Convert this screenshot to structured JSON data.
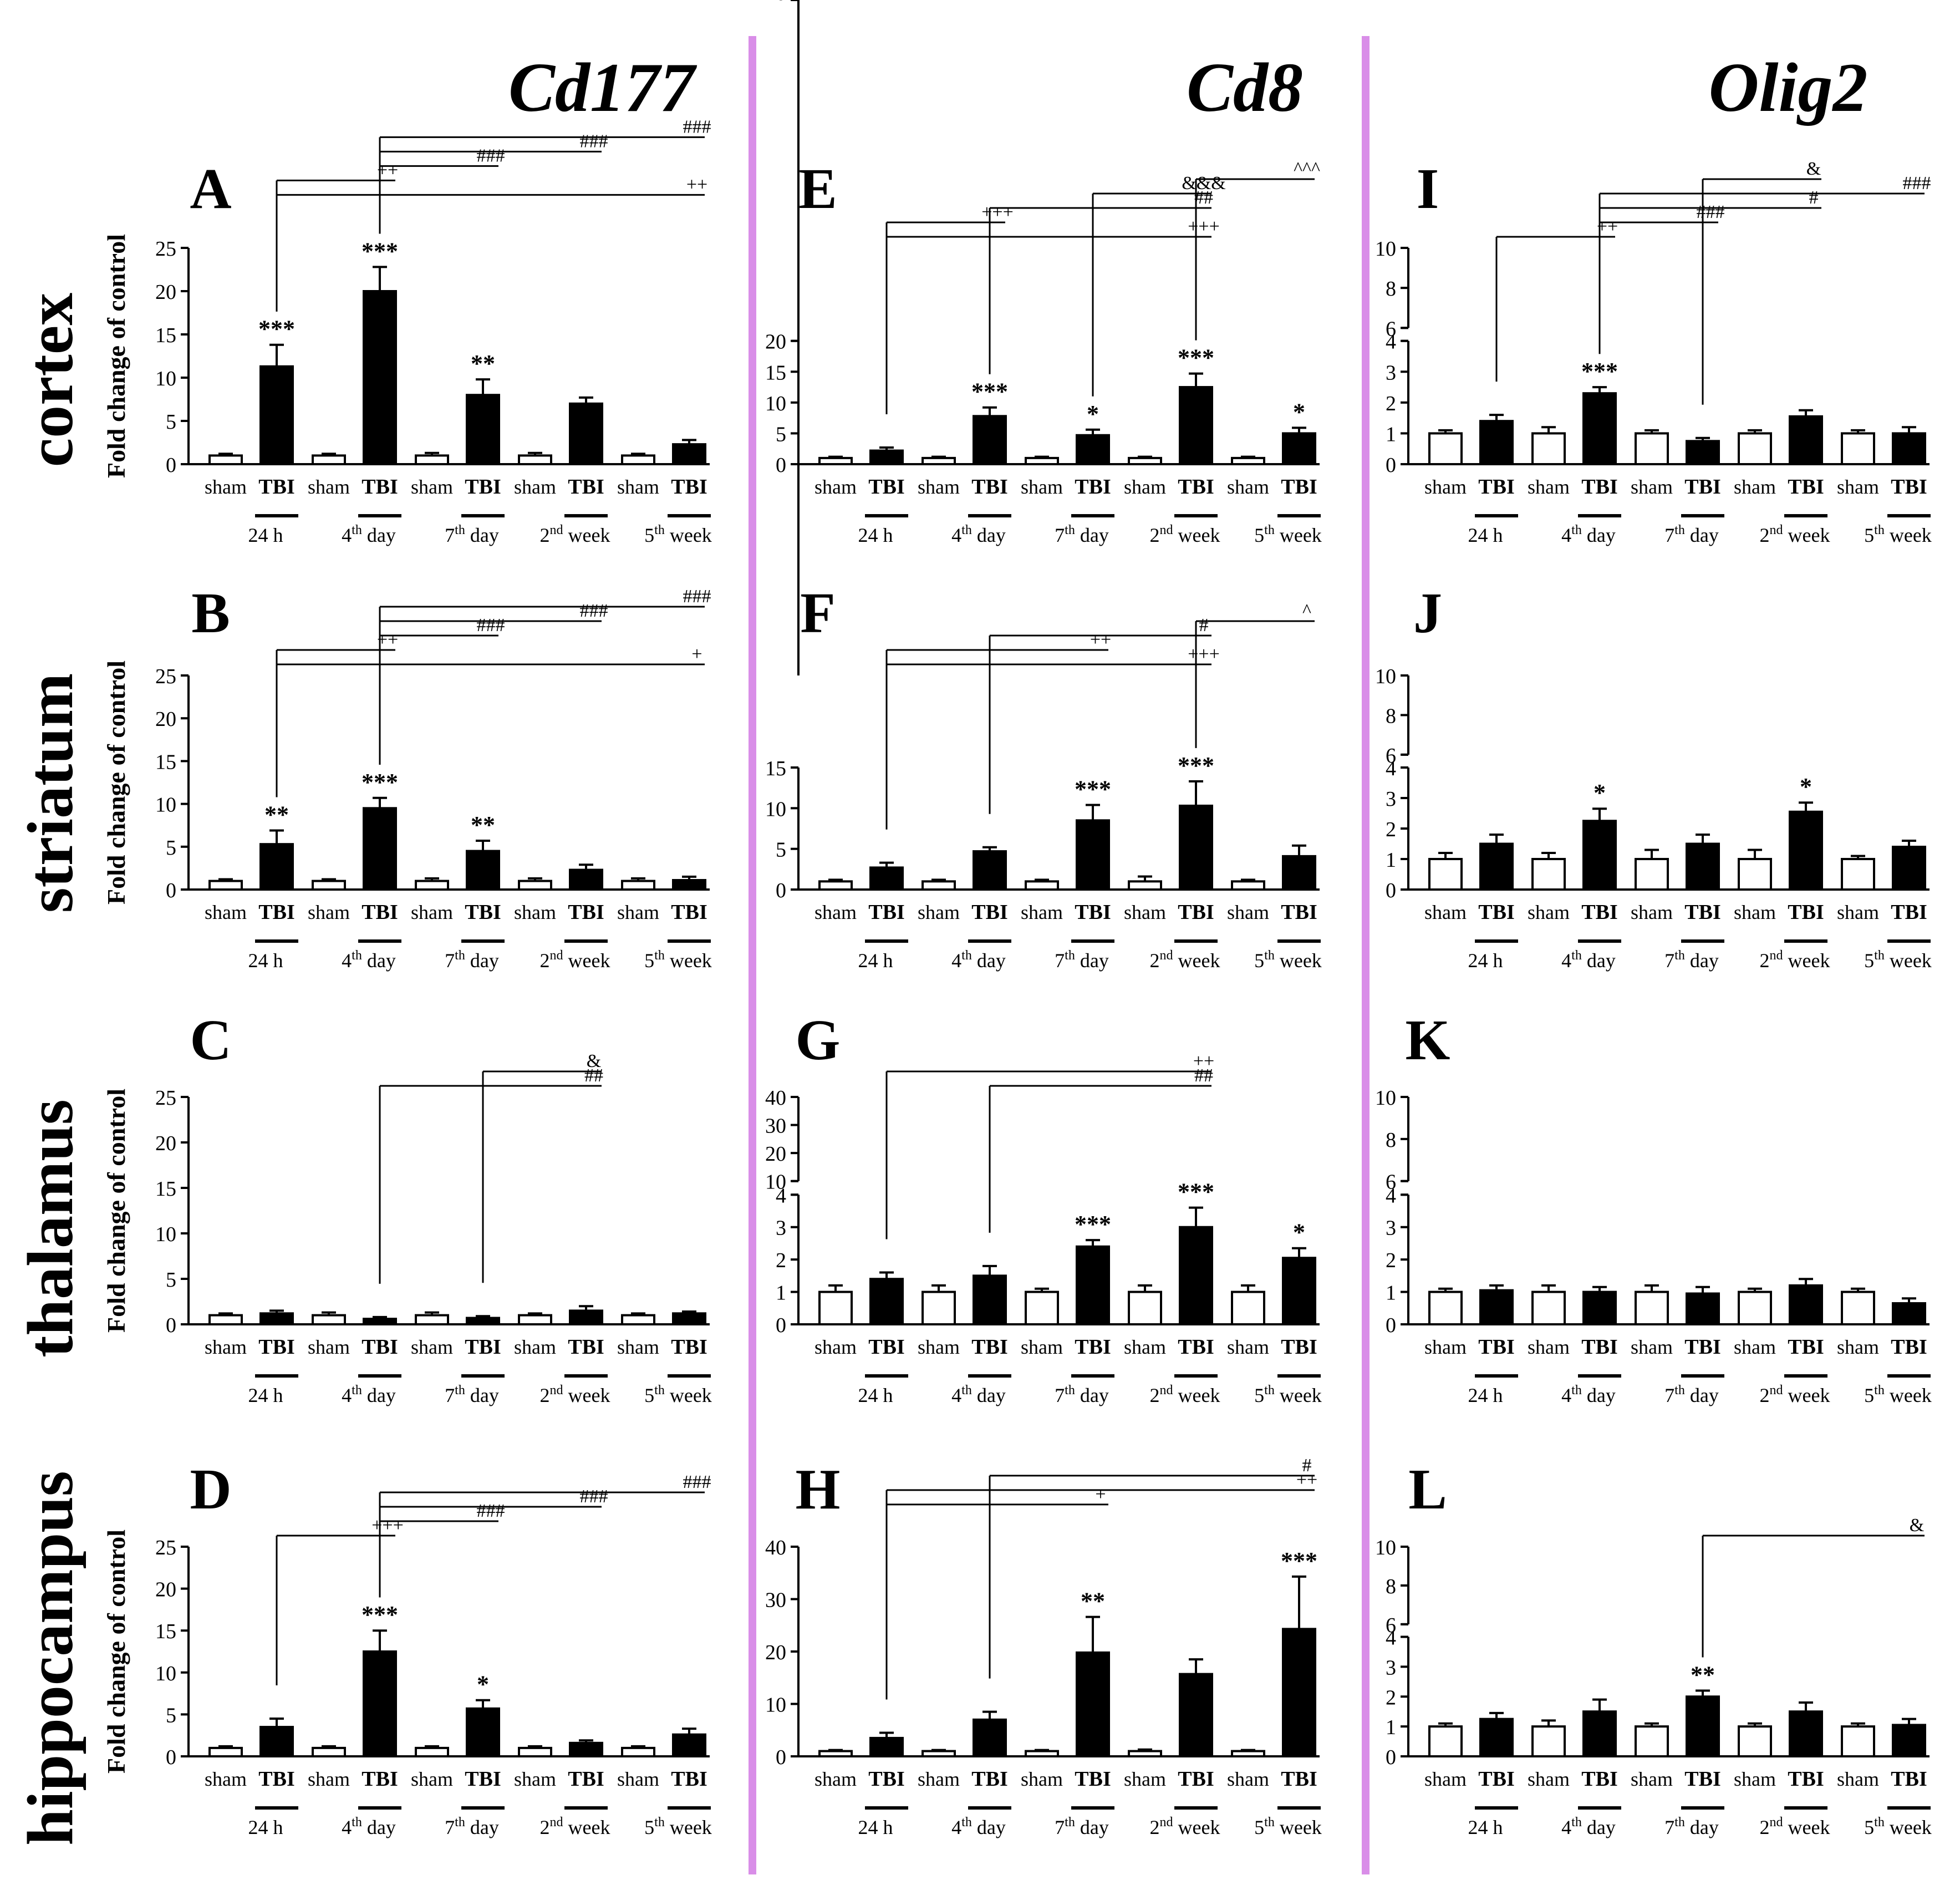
{
  "column_titles": [
    "Cd177",
    "Cd8",
    "Olig2"
  ],
  "row_titles": [
    "cortex",
    "striatum",
    "thalamus",
    "hippocampus"
  ],
  "ylabel": "Fold change of control",
  "bar_labels": [
    "sham",
    "TBI"
  ],
  "group_labels": [
    {
      "pre": "24 h",
      "sup": "",
      "post": ""
    },
    {
      "pre": "4",
      "sup": "th",
      "post": " day"
    },
    {
      "pre": "7",
      "sup": "th",
      "post": " day"
    },
    {
      "pre": "2",
      "sup": "nd",
      "post": " week"
    },
    {
      "pre": "5",
      "sup": "th",
      "post": " week"
    }
  ],
  "colors": {
    "sham": "#ffffff",
    "TBI": "#000000",
    "divider": "#d98ee8",
    "text": "#000000"
  },
  "chart_data": [
    {
      "id": "A",
      "type": "bar",
      "column": 0,
      "row": 0,
      "ylim": [
        0,
        25
      ],
      "yticks": [
        0,
        5,
        10,
        15,
        20,
        25
      ],
      "series": [
        {
          "name": "sham",
          "values": [
            1,
            1,
            1,
            1,
            1
          ],
          "err": [
            0.2,
            0.2,
            0.3,
            0.3,
            0.2
          ]
        },
        {
          "name": "TBI",
          "values": [
            11.3,
            20,
            8,
            7,
            2.3
          ],
          "err": [
            2.5,
            2.8,
            1.8,
            0.7,
            0.5
          ]
        }
      ],
      "stars": [
        "***",
        "***",
        "**",
        "",
        ""
      ],
      "comparisons": [
        {
          "from": 0,
          "to": 4,
          "sym": "++"
        },
        {
          "from": 0,
          "to": 1,
          "sym": "++"
        },
        {
          "from": 1,
          "to": 2,
          "sym": "###"
        },
        {
          "from": 1,
          "to": 3,
          "sym": "###"
        },
        {
          "from": 1,
          "to": 4,
          "sym": "###"
        }
      ]
    },
    {
      "id": "B",
      "type": "bar",
      "column": 0,
      "row": 1,
      "ylim": [
        0,
        25
      ],
      "yticks": [
        0,
        5,
        10,
        15,
        20,
        25
      ],
      "series": [
        {
          "name": "sham",
          "values": [
            1,
            1,
            1,
            1,
            1
          ],
          "err": [
            0.2,
            0.2,
            0.3,
            0.3,
            0.3
          ]
        },
        {
          "name": "TBI",
          "values": [
            5.3,
            9.5,
            4.5,
            2.3,
            1.1
          ],
          "err": [
            1.6,
            1.2,
            1.2,
            0.6,
            0.4
          ]
        }
      ],
      "stars": [
        "**",
        "***",
        "**",
        "",
        ""
      ],
      "comparisons": [
        {
          "from": 0,
          "to": 4,
          "sym": "+"
        },
        {
          "from": 0,
          "to": 1,
          "sym": "++"
        },
        {
          "from": 1,
          "to": 2,
          "sym": "###"
        },
        {
          "from": 1,
          "to": 3,
          "sym": "###"
        },
        {
          "from": 1,
          "to": 4,
          "sym": "###"
        }
      ]
    },
    {
      "id": "C",
      "type": "bar",
      "column": 0,
      "row": 2,
      "ylim": [
        0,
        25
      ],
      "yticks": [
        0,
        5,
        10,
        15,
        20,
        25
      ],
      "series": [
        {
          "name": "sham",
          "values": [
            1,
            1,
            1,
            1,
            1
          ],
          "err": [
            0.2,
            0.3,
            0.3,
            0.2,
            0.2
          ]
        },
        {
          "name": "TBI",
          "values": [
            1.2,
            0.6,
            0.7,
            1.5,
            1.2
          ],
          "err": [
            0.3,
            0.2,
            0.2,
            0.5,
            0.2
          ]
        }
      ],
      "stars": [
        "",
        "",
        "",
        "",
        ""
      ],
      "comparisons": [
        {
          "from": 1,
          "to": 3,
          "sym": "##"
        },
        {
          "from": 2,
          "to": 3,
          "sym": "&"
        }
      ]
    },
    {
      "id": "D",
      "type": "bar",
      "column": 0,
      "row": 3,
      "ylim": [
        0,
        25
      ],
      "yticks": [
        0,
        5,
        10,
        15,
        20,
        25
      ],
      "series": [
        {
          "name": "sham",
          "values": [
            1,
            1,
            1,
            1,
            1
          ],
          "err": [
            0.2,
            0.2,
            0.2,
            0.2,
            0.2
          ]
        },
        {
          "name": "TBI",
          "values": [
            3.5,
            12.5,
            5.7,
            1.6,
            2.6
          ],
          "err": [
            1.0,
            2.5,
            1.0,
            0.3,
            0.7
          ]
        }
      ],
      "stars": [
        "",
        "***",
        "*",
        "",
        ""
      ],
      "comparisons": [
        {
          "from": 0,
          "to": 1,
          "sym": "+++"
        },
        {
          "from": 1,
          "to": 2,
          "sym": "###"
        },
        {
          "from": 1,
          "to": 3,
          "sym": "###"
        },
        {
          "from": 1,
          "to": 4,
          "sym": "###"
        }
      ]
    },
    {
      "id": "E",
      "type": "bar",
      "column": 1,
      "row": 0,
      "ylim": [
        0,
        40
      ],
      "yticks": [
        0,
        5,
        10,
        15,
        20,
        40
      ],
      "axis_break": [
        20,
        40
      ],
      "series": [
        {
          "name": "sham",
          "values": [
            1,
            1,
            1,
            1,
            1
          ],
          "err": [
            0.2,
            0.2,
            0.2,
            0.2,
            0.2
          ]
        },
        {
          "name": "TBI",
          "values": [
            2.2,
            7.8,
            4.7,
            12.5,
            5
          ],
          "err": [
            0.5,
            1.4,
            0.9,
            2.2,
            0.9
          ]
        }
      ],
      "stars": [
        "",
        "***",
        "*",
        "***",
        "*"
      ],
      "comparisons": [
        {
          "from": 0,
          "to": 3,
          "sym": "+++"
        },
        {
          "from": 0,
          "to": 1,
          "sym": "+++"
        },
        {
          "from": 1,
          "to": 3,
          "sym": "##"
        },
        {
          "from": 2,
          "to": 3,
          "sym": "&&&"
        },
        {
          "from": 3,
          "to": 4,
          "sym": "^^^"
        }
      ]
    },
    {
      "id": "F",
      "type": "bar",
      "column": 1,
      "row": 1,
      "ylim": [
        0,
        40
      ],
      "yticks": [
        0,
        5,
        10,
        15,
        40
      ],
      "axis_break": [
        15,
        40
      ],
      "series": [
        {
          "name": "sham",
          "values": [
            1,
            1,
            1,
            1,
            1
          ],
          "err": [
            0.2,
            0.2,
            0.2,
            0.6,
            0.2
          ]
        },
        {
          "name": "TBI",
          "values": [
            2.7,
            4.7,
            8.5,
            10.3,
            4.1
          ],
          "err": [
            0.6,
            0.5,
            1.9,
            3.0,
            1.3
          ]
        }
      ],
      "stars": [
        "",
        "",
        "***",
        "***",
        ""
      ],
      "comparisons": [
        {
          "from": 0,
          "to": 3,
          "sym": "+++"
        },
        {
          "from": 0,
          "to": 2,
          "sym": "++"
        },
        {
          "from": 1,
          "to": 3,
          "sym": "#"
        },
        {
          "from": 3,
          "to": 4,
          "sym": "^"
        }
      ]
    },
    {
      "id": "G",
      "type": "bar",
      "column": 1,
      "row": 2,
      "ylim": [
        0,
        40
      ],
      "yticks": [
        0,
        1,
        2,
        3,
        4,
        10,
        20,
        30,
        40
      ],
      "axis_break": [
        4,
        10
      ],
      "series": [
        {
          "name": "sham",
          "values": [
            1,
            1,
            1,
            1,
            1
          ],
          "err": [
            0.2,
            0.2,
            0.1,
            0.2,
            0.2
          ]
        },
        {
          "name": "TBI",
          "values": [
            1.4,
            1.5,
            2.4,
            3,
            2.05
          ],
          "err": [
            0.2,
            0.3,
            0.2,
            0.6,
            0.3
          ]
        }
      ],
      "stars": [
        "",
        "",
        "***",
        "***",
        "*"
      ],
      "comparisons": [
        {
          "from": 1,
          "to": 3,
          "sym": "##"
        },
        {
          "from": 0,
          "to": 3,
          "sym": "++"
        }
      ]
    },
    {
      "id": "H",
      "type": "bar",
      "column": 1,
      "row": 3,
      "ylim": [
        0,
        40
      ],
      "yticks": [
        0,
        10,
        20,
        30,
        40
      ],
      "series": [
        {
          "name": "sham",
          "values": [
            1,
            1,
            1,
            1,
            1
          ],
          "err": [
            0.2,
            0.2,
            0.2,
            0.3,
            0.2
          ]
        },
        {
          "name": "TBI",
          "values": [
            3.5,
            7,
            19.8,
            15.7,
            24.3
          ],
          "err": [
            1.0,
            1.5,
            6.8,
            2.8,
            10
          ]
        }
      ],
      "stars": [
        "",
        "",
        "**",
        "",
        "***"
      ],
      "comparisons": [
        {
          "from": 0,
          "to": 2,
          "sym": "+"
        },
        {
          "from": 0,
          "to": 4,
          "sym": "++"
        },
        {
          "from": 1,
          "to": 4,
          "sym": "#"
        }
      ]
    },
    {
      "id": "I",
      "type": "bar",
      "column": 2,
      "row": 0,
      "ylim": [
        0,
        10
      ],
      "yticks": [
        0,
        1,
        2,
        3,
        4,
        6,
        8,
        10
      ],
      "axis_break": [
        4,
        6
      ],
      "series": [
        {
          "name": "sham",
          "values": [
            1,
            1,
            1,
            1,
            1
          ],
          "err": [
            0.1,
            0.2,
            0.1,
            0.1,
            0.1
          ]
        },
        {
          "name": "TBI",
          "values": [
            1.4,
            2.3,
            0.75,
            1.55,
            1.0
          ],
          "err": [
            0.2,
            0.2,
            0.1,
            0.2,
            0.2
          ]
        }
      ],
      "stars": [
        "",
        "***",
        "",
        "",
        ""
      ],
      "comparisons": [
        {
          "from": 0,
          "to": 1,
          "sym": "++"
        },
        {
          "from": 1,
          "to": 2,
          "sym": "###"
        },
        {
          "from": 1,
          "to": 3,
          "sym": "#"
        },
        {
          "from": 1,
          "to": 4,
          "sym": "###"
        },
        {
          "from": 2,
          "to": 3,
          "sym": "&"
        }
      ]
    },
    {
      "id": "J",
      "type": "bar",
      "column": 2,
      "row": 1,
      "ylim": [
        0,
        10
      ],
      "yticks": [
        0,
        1,
        2,
        3,
        4,
        6,
        8,
        10
      ],
      "axis_break": [
        4,
        6
      ],
      "series": [
        {
          "name": "sham",
          "values": [
            1,
            1,
            1,
            1,
            1
          ],
          "err": [
            0.2,
            0.2,
            0.3,
            0.3,
            0.1
          ]
        },
        {
          "name": "TBI",
          "values": [
            1.5,
            2.25,
            1.5,
            2.55,
            1.4
          ],
          "err": [
            0.3,
            0.4,
            0.3,
            0.3,
            0.2
          ]
        }
      ],
      "stars": [
        "",
        "*",
        "",
        "*",
        ""
      ],
      "comparisons": []
    },
    {
      "id": "K",
      "type": "bar",
      "column": 2,
      "row": 2,
      "ylim": [
        0,
        10
      ],
      "yticks": [
        0,
        1,
        2,
        3,
        4,
        6,
        8,
        10
      ],
      "axis_break": [
        4,
        6
      ],
      "series": [
        {
          "name": "sham",
          "values": [
            1,
            1,
            1,
            1,
            1
          ],
          "err": [
            0.1,
            0.2,
            0.2,
            0.1,
            0.1
          ]
        },
        {
          "name": "TBI",
          "values": [
            1.05,
            1.0,
            0.95,
            1.2,
            0.65
          ],
          "err": [
            0.15,
            0.15,
            0.2,
            0.2,
            0.15
          ]
        }
      ],
      "stars": [
        "",
        "",
        "",
        "",
        ""
      ],
      "comparisons": []
    },
    {
      "id": "L",
      "type": "bar",
      "column": 2,
      "row": 3,
      "ylim": [
        0,
        10
      ],
      "yticks": [
        0,
        1,
        2,
        3,
        4,
        6,
        8,
        10
      ],
      "axis_break": [
        4,
        6
      ],
      "series": [
        {
          "name": "sham",
          "values": [
            1,
            1,
            1,
            1,
            1
          ],
          "err": [
            0.1,
            0.2,
            0.1,
            0.1,
            0.1
          ]
        },
        {
          "name": "TBI",
          "values": [
            1.25,
            1.5,
            2.0,
            1.5,
            1.05
          ],
          "err": [
            0.2,
            0.4,
            0.2,
            0.3,
            0.2
          ]
        }
      ],
      "stars": [
        "",
        "",
        "**",
        "",
        ""
      ],
      "comparisons": [
        {
          "from": 2,
          "to": 4,
          "sym": "&"
        }
      ]
    }
  ]
}
